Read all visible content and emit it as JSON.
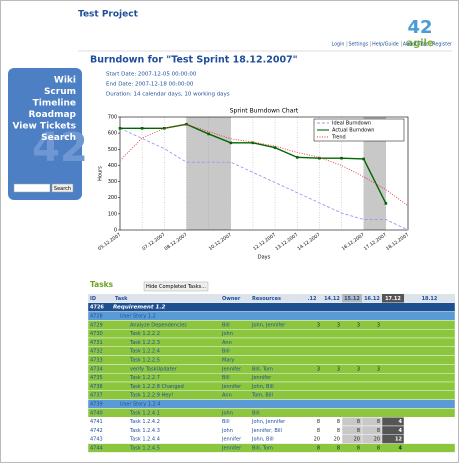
{
  "header": {
    "title": "Test Project",
    "logo": {
      "number": "42",
      "word": "agile"
    }
  },
  "nav": [
    "Login",
    "Settings",
    "Help/Guide",
    "About Trac",
    "Register"
  ],
  "sidebar": {
    "links": [
      "Wiki",
      "Scrum",
      "Timeline",
      "Roadmap",
      "View Tickets",
      "Search"
    ],
    "button": "Search",
    "watermark": "42"
  },
  "sprint": {
    "title": "Burndown for \"Test Sprint 18.12.2007\"",
    "start": "Start Date: 2007-12-05 00:00:00",
    "end": "End Date: 2007-12-18 00:00:00",
    "duration": "Duration: 14 calendar days, 10 working days"
  },
  "chart": {
    "type": "line",
    "title": "Sprint Burndown Chart",
    "ylabel": "Hours",
    "xlabel": "Days",
    "categories": [
      "05.12.2007",
      null,
      "07.12.2007",
      "08.12.2007",
      null,
      "10.12.2007",
      null,
      "12.12.2007",
      "13.12.2007",
      "14.12.2007",
      null,
      "16.12.2007",
      "17.12.2007",
      "18.12.2007"
    ],
    "shaded": [
      [
        "08.12.2007",
        "10.12.2007"
      ],
      [
        "16.12.2007",
        "17.12.2007"
      ]
    ],
    "ylim": [
      0,
      700
    ],
    "yticks": [
      0,
      100,
      200,
      300,
      400,
      500,
      600,
      700
    ],
    "legend": "upper right",
    "series": [
      {
        "name": "Ideal Burndown",
        "color": "#9999ee",
        "dash": "dashed",
        "values": [
          630,
          567,
          504,
          420,
          420,
          420,
          357,
          294,
          231,
          168,
          105,
          65,
          65,
          0
        ]
      },
      {
        "name": "Actual Burndown",
        "color": "#006600",
        "dash": "solid",
        "values": [
          630,
          630,
          630,
          655,
          595,
          540,
          540,
          510,
          450,
          445,
          445,
          440,
          165,
          null
        ]
      },
      {
        "name": "Trend",
        "color": "#ee3333",
        "dash": "dotted",
        "values": [
          430,
          570,
          630,
          655,
          610,
          565,
          545,
          520,
          480,
          450,
          400,
          330,
          250,
          150
        ]
      }
    ]
  },
  "tasks": {
    "heading": "Tasks",
    "button": "Hide Completed Tasks...",
    "columns": [
      "ID",
      "Task",
      "Owner",
      "Resources",
      ".12",
      "14.12",
      "15.12",
      "16.12",
      "17.12",
      "18.12"
    ],
    "rows": [
      {
        "id": "4726",
        "task": "Requirement 1.2",
        "color": "#1d4f91"
      },
      {
        "id": "4728",
        "task": "User Story 1.2",
        "color": "#5b9bd5"
      },
      {
        "id": "4729",
        "task": "Analyze Dependencies",
        "owner": "Bill",
        "resources": "John, Jennifer",
        "hours": [
          3,
          3,
          3,
          3
        ],
        "color": "#8cc63f"
      },
      {
        "id": "4730",
        "task": "Task 1.2.2.2",
        "owner": "John",
        "color": "#8cc63f"
      },
      {
        "id": "4731",
        "task": "Task 1.2.2.3",
        "owner": "Ann",
        "color": "#8cc63f"
      },
      {
        "id": "4732",
        "task": "Task 1.2.2.4",
        "owner": "Bill",
        "color": "#8cc63f"
      },
      {
        "id": "4733",
        "task": "Task 1.2.2.5",
        "owner": "Mary",
        "color": "#8cc63f"
      },
      {
        "id": "4734",
        "task": "verify TaskUpdater",
        "owner": "Jennifer",
        "resources": "Bill, Tom",
        "hours": [
          3,
          3,
          3,
          3
        ],
        "color": "#8cc63f"
      },
      {
        "id": "4735",
        "task": "Task 1.2.2.7",
        "owner": "Bill",
        "resources": "Jennifer",
        "color": "#8cc63f"
      },
      {
        "id": "4736",
        "task": "Task 1.2.2.8 Changed",
        "owner": "Jennifer",
        "resources": "John, Bill",
        "color": "#8cc63f"
      },
      {
        "id": "4737",
        "task": "Task 1.2.2.9 Hey!",
        "owner": "Ann",
        "resources": "Tom, Bill",
        "color": "#8cc63f"
      },
      {
        "id": "4739",
        "task": "User Story 1.2.4",
        "color": "#5b9bd5"
      },
      {
        "id": "4740",
        "task": "Task 1.2.4.1",
        "owner": "John",
        "resources": "Bill",
        "color": "#8cc63f"
      },
      {
        "id": "4741",
        "task": "Task 1.2.4.2",
        "owner": "Bill",
        "resources": "John, Jennifer",
        "hours": [
          8,
          8,
          8,
          8,
          4
        ],
        "color": "#ffffff"
      },
      {
        "id": "4742",
        "task": "Task 1.2.4.3",
        "owner": "John",
        "resources": "Jennifer, Bill",
        "hours": [
          8,
          8,
          8,
          8,
          4
        ],
        "color": "#ffffff"
      },
      {
        "id": "4743",
        "task": "Task 1.2.4.4",
        "owner": "Jennifer",
        "resources": "John, Bill",
        "hours": [
          20,
          20,
          20,
          20,
          12
        ],
        "color": "#ffffff"
      },
      {
        "id": "4744",
        "task": "Task 1.2.4.5",
        "owner": "Jennifer",
        "resources": "Bill, Tom",
        "hours": [
          8,
          8,
          8,
          8,
          4
        ],
        "color": "#8cc63f"
      }
    ]
  }
}
